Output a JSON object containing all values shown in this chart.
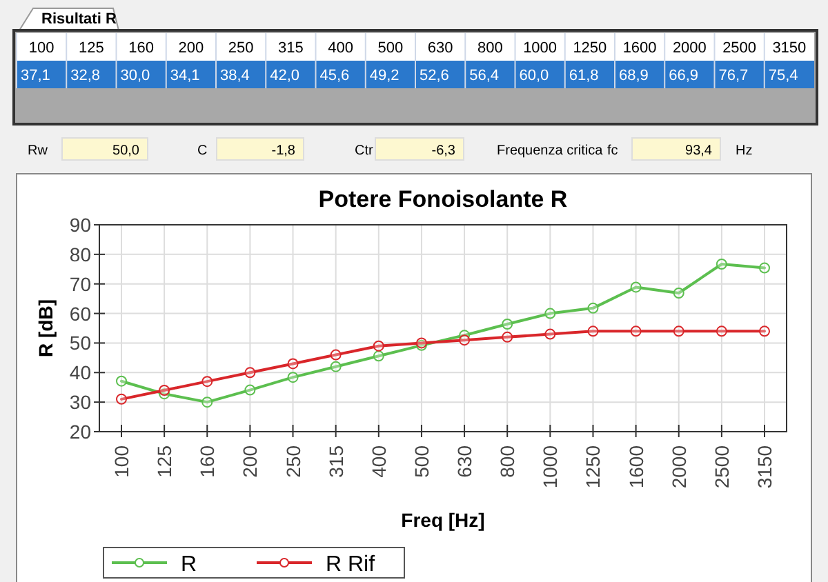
{
  "chart_data": {
    "type": "line",
    "title": "Potere Fonoisolante R",
    "xlabel": "Freq [Hz]",
    "ylabel": "R [dB]",
    "categories": [
      "100",
      "125",
      "160",
      "200",
      "250",
      "315",
      "400",
      "500",
      "630",
      "800",
      "1000",
      "1250",
      "1600",
      "2000",
      "2500",
      "3150"
    ],
    "series": [
      {
        "name": "R",
        "color": "#5cbf4f",
        "values": [
          37.1,
          32.8,
          30.0,
          34.1,
          38.4,
          42.0,
          45.6,
          49.2,
          52.6,
          56.4,
          60.0,
          61.8,
          68.9,
          66.9,
          76.7,
          75.4
        ]
      },
      {
        "name": "R Rif",
        "color": "#d9262a",
        "values": [
          31,
          34,
          37,
          40,
          43,
          46,
          49,
          50,
          51,
          52,
          53,
          54,
          54,
          54,
          54,
          54
        ]
      }
    ],
    "ylim": [
      20,
      90
    ],
    "yticks": [
      20,
      30,
      40,
      50,
      60,
      70,
      80,
      90
    ],
    "grid": true,
    "legend": "bottom left",
    "marker": "circle",
    "line_style": "solid",
    "annotations": [
      "Risultati R",
      "Rw",
      "50,0",
      "C",
      "-1,8",
      "Ctr",
      "-6,3",
      "Frequenza critica",
      "fc",
      "93,4",
      "Hz",
      "37,1",
      "32,8",
      "30,0",
      "34,1",
      "38,4",
      "42,0",
      "45,6",
      "49,2",
      "52,6",
      "56,4",
      "60,0",
      "61,8",
      "68,9",
      "66,9",
      "76,7",
      "75,4"
    ]
  }
}
